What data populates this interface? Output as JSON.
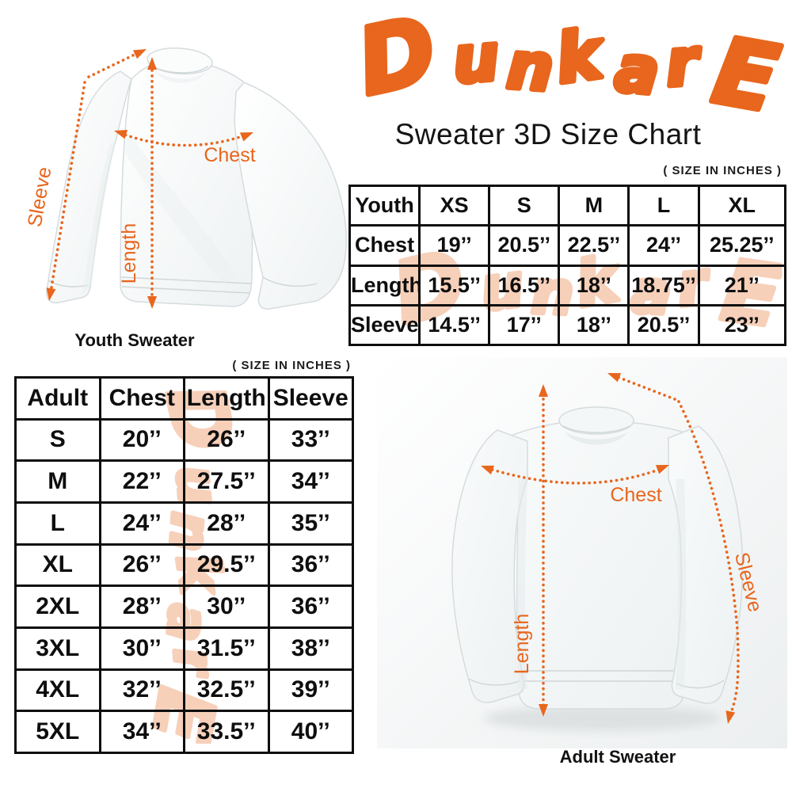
{
  "brand": {
    "name": "DunkarE",
    "color": "#E8661D"
  },
  "header": {
    "subtitle": "Sweater 3D Size Chart"
  },
  "youth_figure": {
    "caption": "Youth Sweater",
    "labels": {
      "chest": "Chest",
      "length": "Length",
      "sleeve": "Sleeve"
    }
  },
  "adult_figure": {
    "caption": "Adult Sweater",
    "labels": {
      "chest": "Chest",
      "length": "Length",
      "sleeve": "Sleeve"
    }
  },
  "youth_table": {
    "size_note": "( SIZE IN INCHES )",
    "header": [
      "Youth",
      "XS",
      "S",
      "M",
      "L",
      "XL"
    ],
    "rows": [
      [
        "Chest",
        "19’’",
        "20.5’’",
        "22.5’’",
        "24’’",
        "25.25’’"
      ],
      [
        "Length",
        "15.5’’",
        "16.5’’",
        "18’’",
        "18.75’’",
        "21’’"
      ],
      [
        "Sleeve",
        "14.5’’",
        "17’’",
        "18’’",
        "20.5’’",
        "23’’"
      ]
    ]
  },
  "adult_table": {
    "size_note": "( SIZE IN INCHES )",
    "header": [
      "Adult",
      "Chest",
      "Length",
      "Sleeve"
    ],
    "rows": [
      [
        "S",
        "20’’",
        "26’’",
        "33’’"
      ],
      [
        "M",
        "22’’",
        "27.5’’",
        "34’’"
      ],
      [
        "L",
        "24’’",
        "28’’",
        "35’’"
      ],
      [
        "XL",
        "26’’",
        "29.5’’",
        "36’’"
      ],
      [
        "2XL",
        "28’’",
        "30’’",
        "36’’"
      ],
      [
        "3XL",
        "30’’",
        "31.5’’",
        "38’’"
      ],
      [
        "4XL",
        "32’’",
        "32.5’’",
        "39’’"
      ],
      [
        "5XL",
        "34’’",
        "33.5’’",
        "40’’"
      ]
    ]
  }
}
